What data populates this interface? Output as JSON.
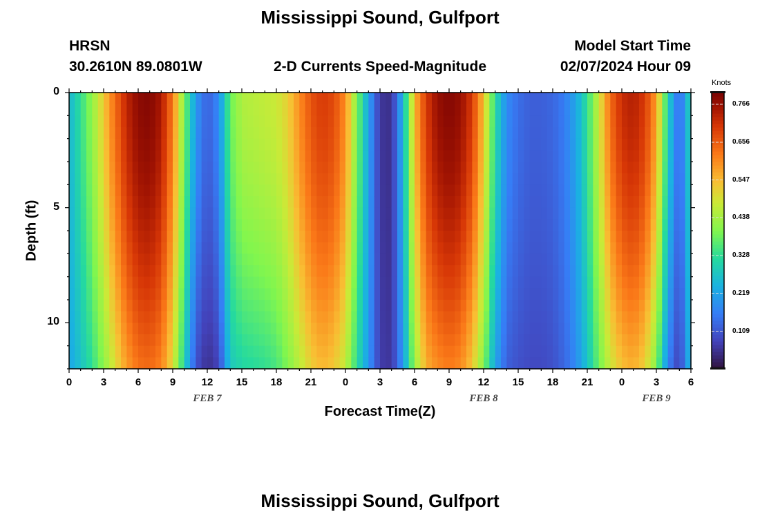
{
  "titles": {
    "main": "Mississippi Sound, Gulfport",
    "bottom_repeat": "Mississippi Sound, Gulfport",
    "station_id": "HRSN",
    "coords": "30.2610N  89.0801W",
    "product": "2-D Currents Speed-Magnitude",
    "model_start_label": "Model Start Time",
    "model_start_value": "02/07/2024 Hour 09"
  },
  "chart_data": {
    "type": "heatmap",
    "title": "2-D Currents Speed-Magnitude",
    "xlabel": "Forecast Time(Z)",
    "ylabel": "Depth (ft)",
    "x_hours": [
      0,
      54
    ],
    "x_tick_labels": [
      "0",
      "3",
      "6",
      "9",
      "12",
      "15",
      "18",
      "21",
      "0",
      "3",
      "6",
      "9",
      "12",
      "15",
      "18",
      "21",
      "0",
      "3",
      "6"
    ],
    "x_date_annotations": [
      {
        "label": "FEB 7",
        "hour": 12
      },
      {
        "label": "FEB 8",
        "hour": 36
      },
      {
        "label": "FEB 9",
        "hour": 51
      }
    ],
    "y_range_ft": [
      0,
      12
    ],
    "y_tick_labels": [
      "0",
      "5",
      "10"
    ],
    "colorbar": {
      "unit_label": "Knots",
      "range": [
        0.0,
        0.8
      ],
      "ticks": [
        "0.766",
        "0.656",
        "0.547",
        "0.438",
        "0.328",
        "0.219",
        "0.109"
      ],
      "tick_values": [
        0.766,
        0.656,
        0.547,
        0.438,
        0.328,
        0.219,
        0.109
      ]
    },
    "speed_profile": {
      "hours": [
        0,
        1,
        2,
        3,
        4,
        5,
        6,
        7,
        8,
        9,
        10,
        11,
        12,
        13,
        14,
        15,
        16,
        17,
        18,
        19,
        20,
        21,
        22,
        23,
        24,
        25,
        26,
        27,
        28,
        29,
        30,
        31,
        32,
        33,
        34,
        35,
        36,
        37,
        38,
        39,
        40,
        41,
        42,
        43,
        44,
        45,
        46,
        47,
        48,
        49,
        50,
        51,
        52,
        53,
        54
      ],
      "surface_knots": [
        0.25,
        0.33,
        0.42,
        0.53,
        0.64,
        0.73,
        0.78,
        0.79,
        0.75,
        0.62,
        0.4,
        0.2,
        0.12,
        0.18,
        0.38,
        0.45,
        0.46,
        0.47,
        0.48,
        0.52,
        0.6,
        0.67,
        0.7,
        0.68,
        0.6,
        0.4,
        0.22,
        0.06,
        0.05,
        0.25,
        0.55,
        0.7,
        0.77,
        0.79,
        0.77,
        0.7,
        0.54,
        0.32,
        0.18,
        0.14,
        0.12,
        0.12,
        0.13,
        0.16,
        0.22,
        0.33,
        0.48,
        0.64,
        0.72,
        0.74,
        0.7,
        0.58,
        0.3,
        0.12,
        0.32
      ],
      "bottom_knots": [
        0.22,
        0.27,
        0.33,
        0.41,
        0.5,
        0.58,
        0.63,
        0.64,
        0.61,
        0.5,
        0.3,
        0.1,
        0.05,
        0.08,
        0.28,
        0.31,
        0.32,
        0.33,
        0.35,
        0.4,
        0.46,
        0.52,
        0.55,
        0.53,
        0.47,
        0.32,
        0.2,
        0.07,
        0.06,
        0.2,
        0.42,
        0.56,
        0.6,
        0.62,
        0.6,
        0.53,
        0.4,
        0.22,
        0.12,
        0.1,
        0.09,
        0.09,
        0.1,
        0.13,
        0.18,
        0.27,
        0.38,
        0.48,
        0.54,
        0.56,
        0.52,
        0.4,
        0.17,
        0.07,
        0.27
      ]
    }
  }
}
